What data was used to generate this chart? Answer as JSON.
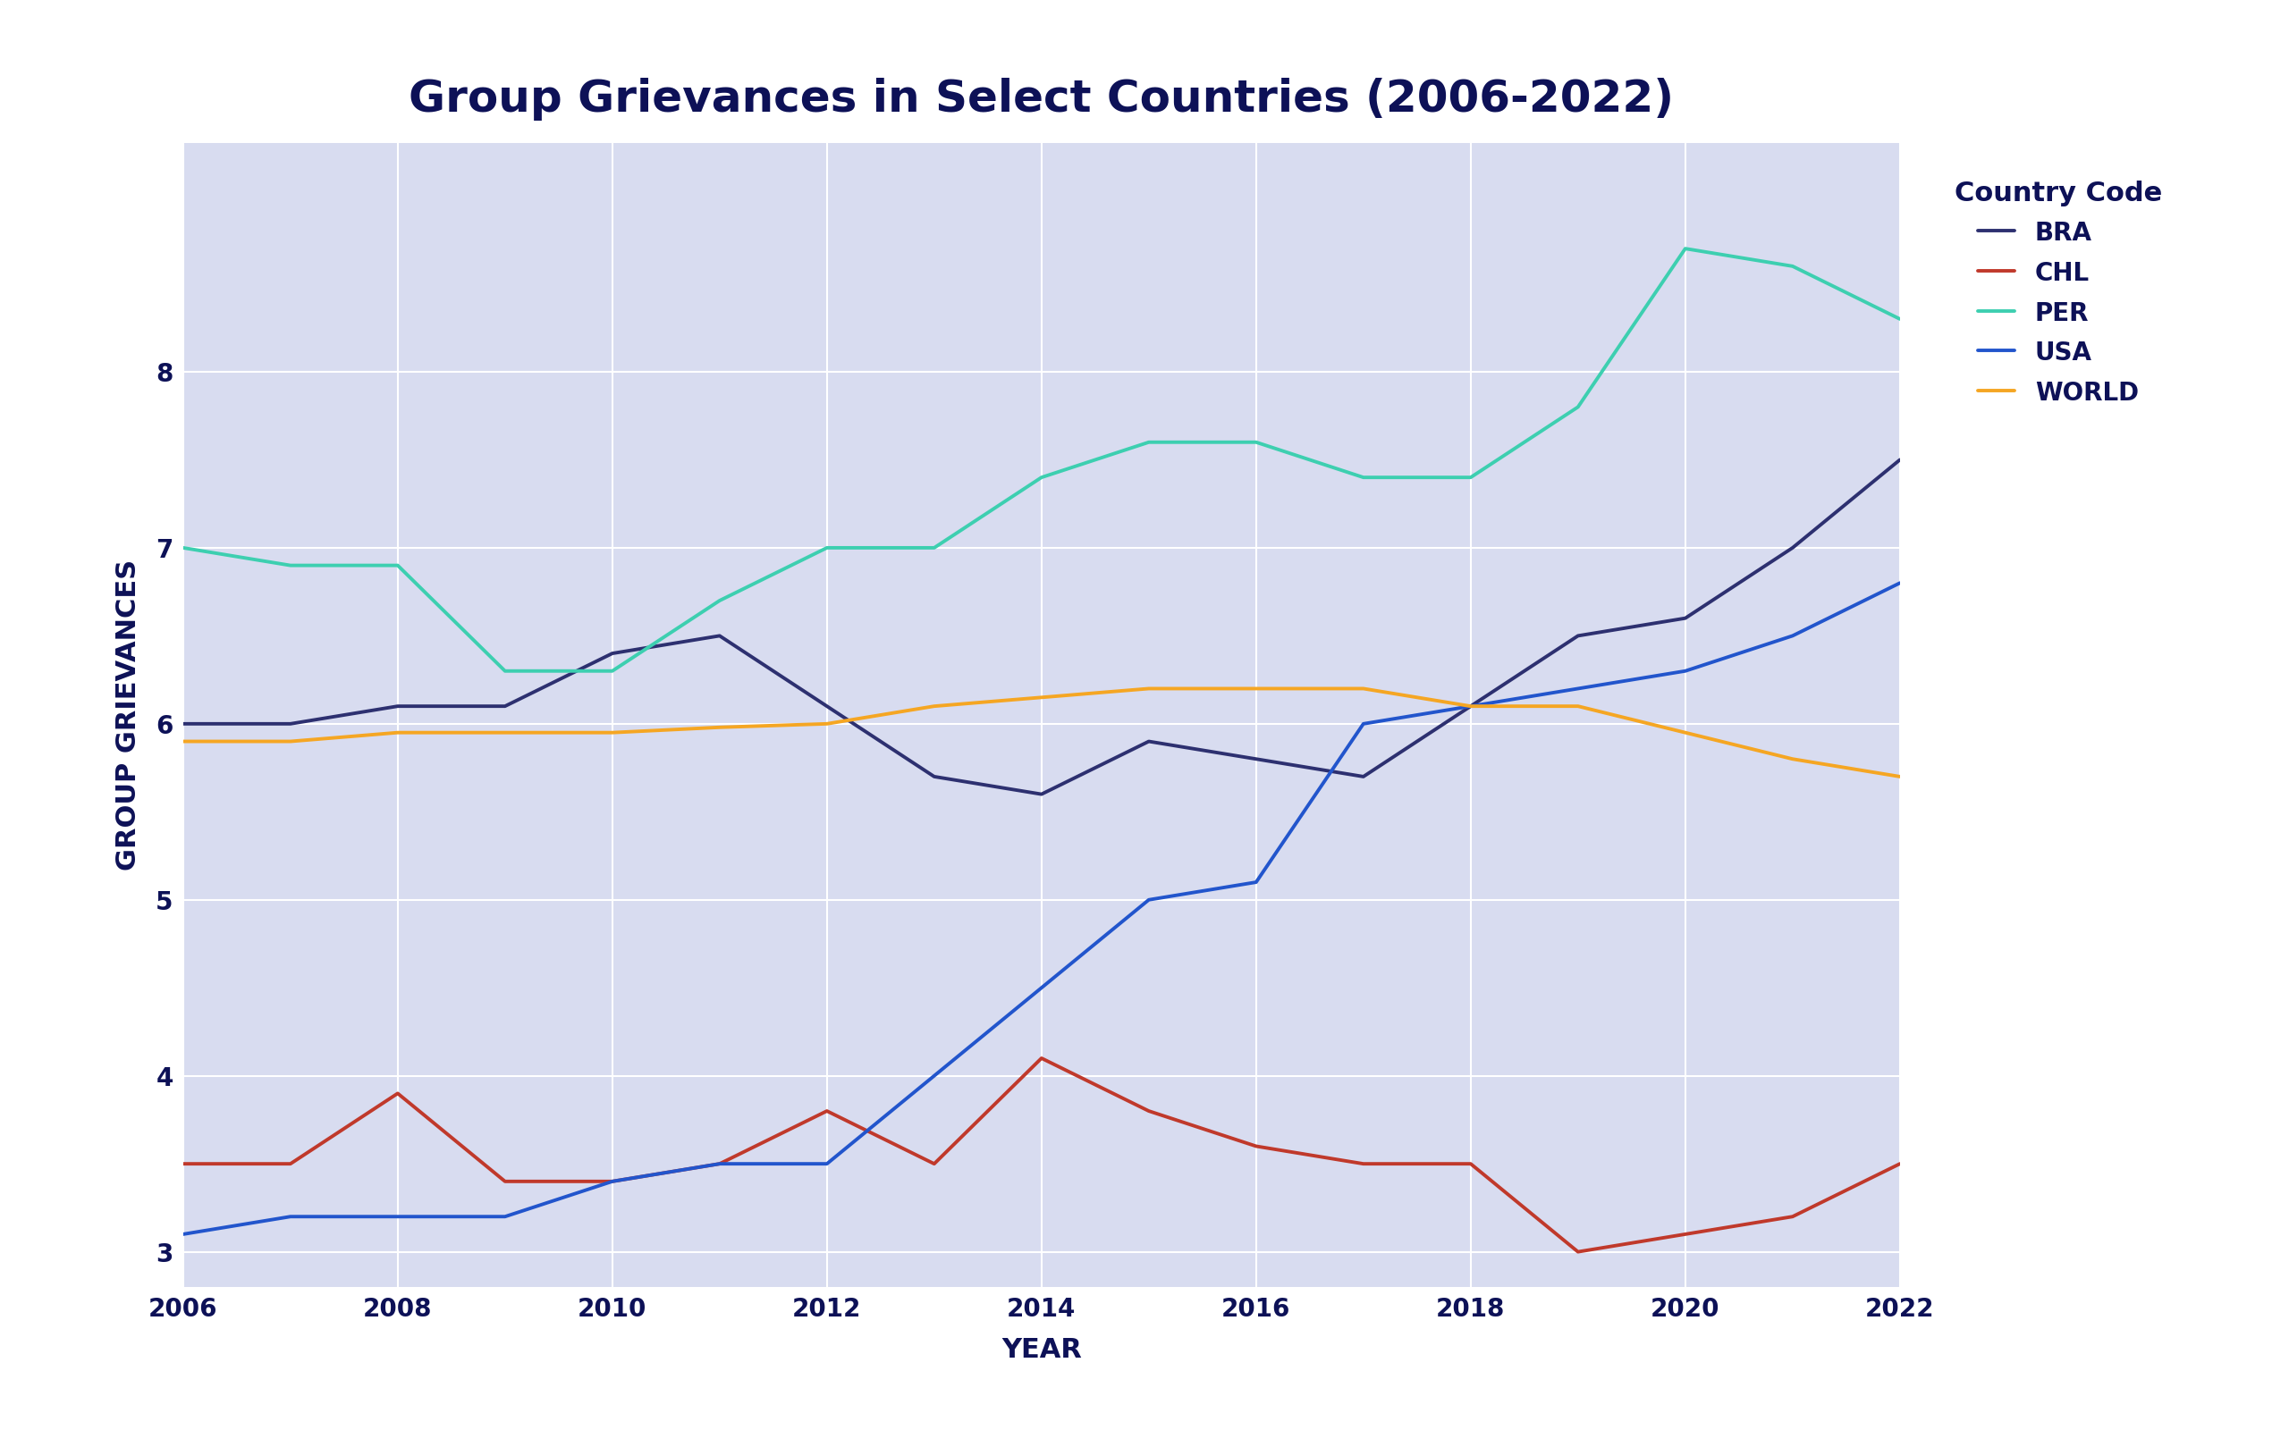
{
  "title": "Group Grievances in Select Countries (2006-2022)",
  "xlabel": "YEAR",
  "ylabel": "GROUP GRIEVANCES",
  "background_color": "#d8dcf0",
  "fig_background": "#ffffff",
  "title_color": "#0d1157",
  "label_color": "#0d1157",
  "title_fontsize": 36,
  "label_fontsize": 22,
  "tick_fontsize": 20,
  "legend_title": "Country Code",
  "years": [
    2006,
    2007,
    2008,
    2009,
    2010,
    2011,
    2012,
    2013,
    2014,
    2015,
    2016,
    2017,
    2018,
    2019,
    2020,
    2021,
    2022
  ],
  "series": {
    "BRA": {
      "values": [
        6.0,
        6.0,
        6.1,
        6.1,
        6.4,
        6.5,
        6.1,
        5.7,
        5.6,
        5.9,
        5.8,
        5.7,
        6.1,
        6.5,
        6.6,
        7.0,
        7.5
      ],
      "color": "#2d3070",
      "linewidth": 2.8
    },
    "CHL": {
      "values": [
        3.5,
        3.5,
        3.9,
        3.4,
        3.4,
        3.5,
        3.8,
        3.5,
        4.1,
        3.8,
        3.6,
        3.5,
        3.5,
        3.0,
        3.1,
        3.2,
        3.5
      ],
      "color": "#c0392b",
      "linewidth": 2.8
    },
    "PER": {
      "values": [
        7.0,
        6.9,
        6.9,
        6.3,
        6.3,
        6.7,
        7.0,
        7.0,
        7.4,
        7.6,
        7.6,
        7.4,
        7.4,
        7.8,
        8.7,
        8.6,
        8.3
      ],
      "color": "#3dcfb0",
      "linewidth": 2.8
    },
    "USA": {
      "values": [
        3.1,
        3.2,
        3.2,
        3.2,
        3.4,
        3.5,
        3.5,
        4.0,
        4.5,
        5.0,
        5.1,
        6.0,
        6.1,
        6.2,
        6.3,
        6.5,
        6.8
      ],
      "color": "#2255cc",
      "linewidth": 2.8
    },
    "WORLD": {
      "values": [
        5.9,
        5.9,
        5.95,
        5.95,
        5.95,
        5.98,
        6.0,
        6.1,
        6.15,
        6.2,
        6.2,
        6.2,
        6.1,
        6.1,
        5.95,
        5.8,
        5.7
      ],
      "color": "#f5a623",
      "linewidth": 2.8
    }
  },
  "ylim": [
    2.8,
    9.3
  ],
  "yticks": [
    3,
    4,
    5,
    6,
    7,
    8
  ],
  "xticks": [
    2006,
    2008,
    2010,
    2012,
    2014,
    2016,
    2018,
    2020,
    2022
  ],
  "grid_color": "#ffffff",
  "grid_alpha": 1.0,
  "legend_fontsize": 20,
  "legend_title_fontsize": 22
}
